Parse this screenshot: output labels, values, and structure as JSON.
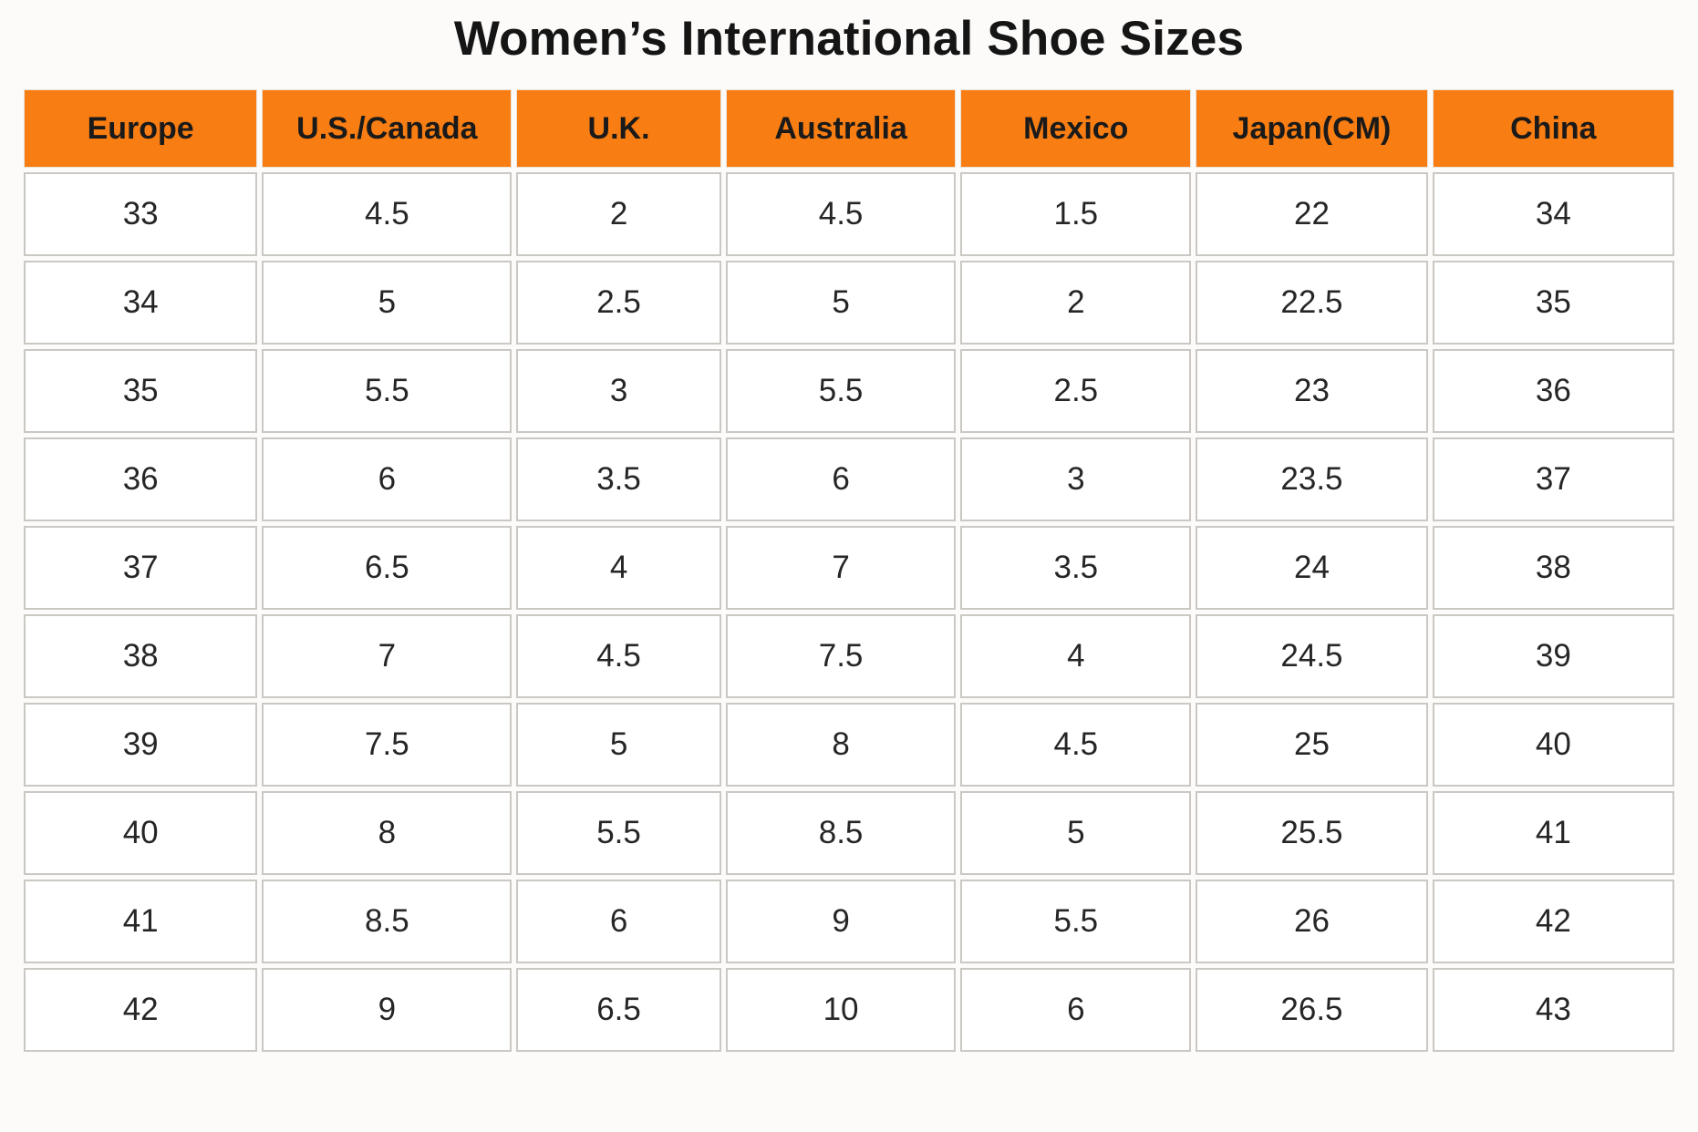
{
  "title": "Women’s International Shoe Sizes",
  "colors": {
    "header_bg": "#f87d12",
    "header_text": "#1a1a1a",
    "cell_bg": "#ffffff",
    "cell_text": "#262626",
    "cell_border": "#cbc8c3",
    "page_bg": "#fcfbfa"
  },
  "chart_data": {
    "type": "table",
    "title": "Women’s International Shoe Sizes",
    "columns": [
      "Europe",
      "U.S./Canada",
      "U.K.",
      "Australia",
      "Mexico",
      "Japan(CM)",
      "China"
    ],
    "rows": [
      [
        "33",
        "4.5",
        "2",
        "4.5",
        "1.5",
        "22",
        "34"
      ],
      [
        "34",
        "5",
        "2.5",
        "5",
        "2",
        "22.5",
        "35"
      ],
      [
        "35",
        "5.5",
        "3",
        "5.5",
        "2.5",
        "23",
        "36"
      ],
      [
        "36",
        "6",
        "3.5",
        "6",
        "3",
        "23.5",
        "37"
      ],
      [
        "37",
        "6.5",
        "4",
        "7",
        "3.5",
        "24",
        "38"
      ],
      [
        "38",
        "7",
        "4.5",
        "7.5",
        "4",
        "24.5",
        "39"
      ],
      [
        "39",
        "7.5",
        "5",
        "8",
        "4.5",
        "25",
        "40"
      ],
      [
        "40",
        "8",
        "5.5",
        "8.5",
        "5",
        "25.5",
        "41"
      ],
      [
        "41",
        "8.5",
        "6",
        "9",
        "5.5",
        "26",
        "42"
      ],
      [
        "42",
        "9",
        "6.5",
        "10",
        "6",
        "26.5",
        "43"
      ]
    ],
    "layout": {
      "header_position": "top-row",
      "grid": true,
      "column_width_percent": [
        14.4,
        15.4,
        12.6,
        14.2,
        14.2,
        14.3,
        14.9
      ]
    }
  }
}
